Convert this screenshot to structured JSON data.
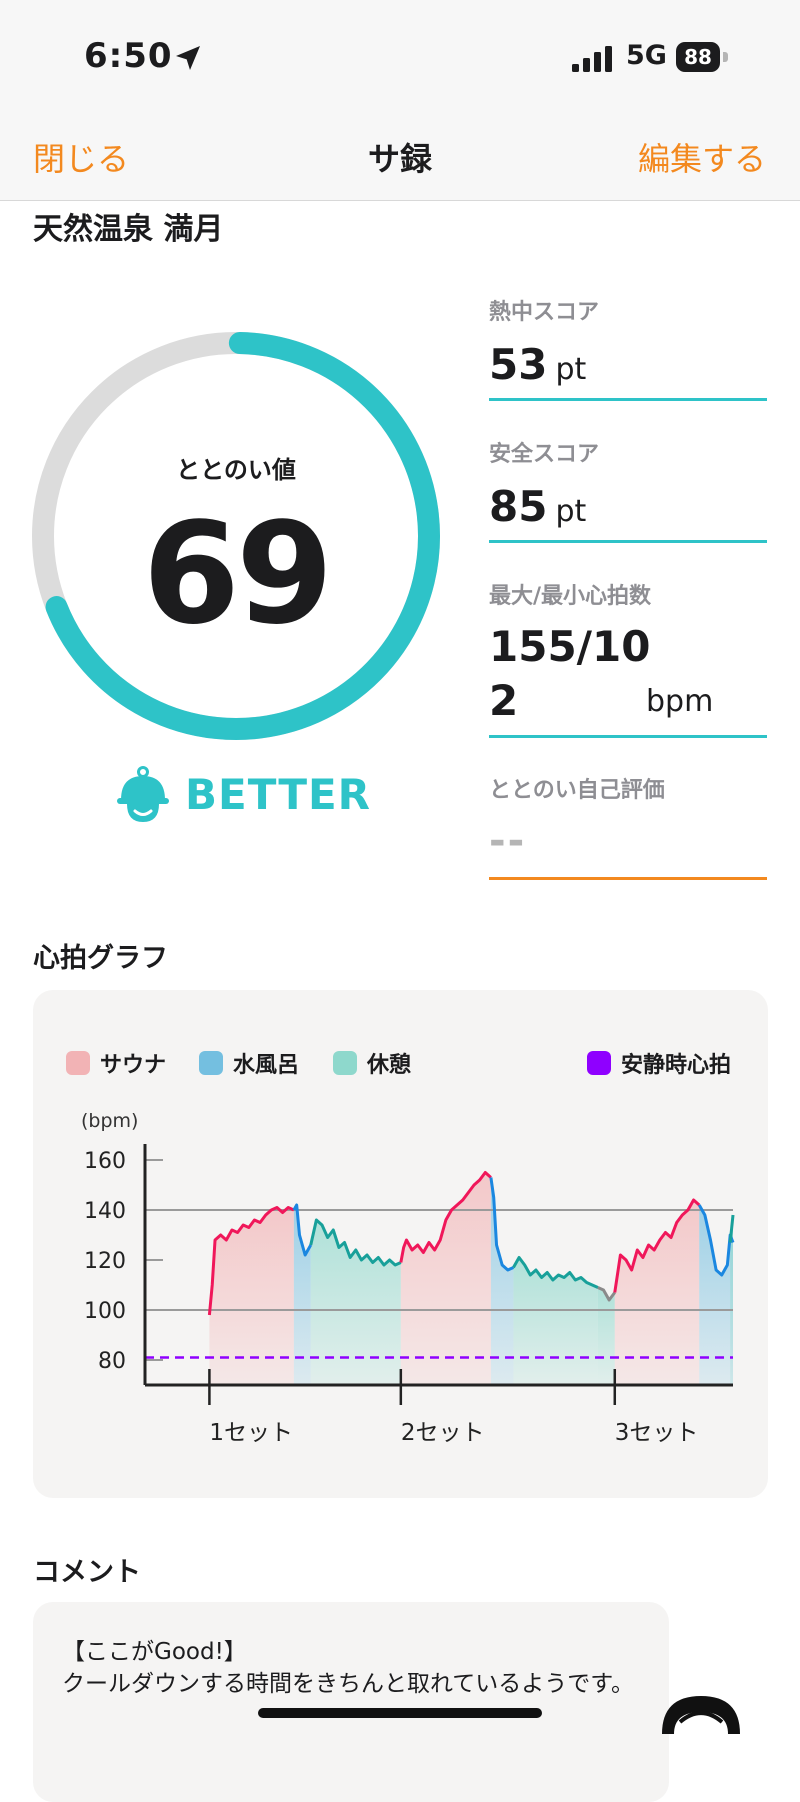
{
  "status": {
    "time": "6:50",
    "network": "5G",
    "battery": "88"
  },
  "nav": {
    "close": "閉じる",
    "title": "サ録",
    "edit": "編集する"
  },
  "place": "天然温泉 満月",
  "gauge": {
    "label": "ととのい値",
    "value": "69",
    "fraction": 0.69,
    "rating": "BETTER",
    "arc_color": "#2ec3c8",
    "track_color": "#dcdcdc"
  },
  "scores": {
    "heat": {
      "label": "熱中スコア",
      "value": "53",
      "unit": "pt"
    },
    "safety": {
      "label": "安全スコア",
      "value": "85",
      "unit": "pt"
    },
    "heart_rate": {
      "label": "最大/最小心拍数",
      "value": "155/102",
      "unit": "bpm"
    },
    "self_eval": {
      "label": "ととのい自己評価",
      "value": "--"
    }
  },
  "graph_section": {
    "title": "心拍グラフ"
  },
  "legend": [
    {
      "label": "サウナ",
      "color": "#f2b3b5"
    },
    {
      "label": "水風呂",
      "color": "#74bfe0"
    },
    {
      "label": "休憩",
      "color": "#8ed8cc"
    },
    {
      "label": "安静時心拍",
      "color": "#8f00ff"
    }
  ],
  "chart_data": {
    "type": "line",
    "ylabel": "(bpm)",
    "yticks": [
      160,
      140,
      120,
      100,
      80
    ],
    "ylim": [
      70,
      168
    ],
    "xlim": [
      0,
      100
    ],
    "set_labels": [
      {
        "label": "1セット",
        "x": 7
      },
      {
        "label": "2セット",
        "x": 41
      },
      {
        "label": "3セット",
        "x": 79
      }
    ],
    "resting_hr": 81,
    "reference_lines": [
      140,
      100
    ],
    "phases": [
      {
        "type": "サウナ",
        "x0": 7,
        "x1": 22
      },
      {
        "type": "水風呂",
        "x0": 22,
        "x1": 25
      },
      {
        "type": "休憩",
        "x0": 25,
        "x1": 41
      },
      {
        "type": "サウナ",
        "x0": 41,
        "x1": 57
      },
      {
        "type": "水風呂",
        "x0": 57,
        "x1": 61
      },
      {
        "type": "休憩",
        "x0": 61,
        "x1": 76
      },
      {
        "type": "サウナ",
        "x0": 79,
        "x1": 94
      },
      {
        "type": "水風呂",
        "x0": 94,
        "x1": 100
      }
    ],
    "series": [
      {
        "type": "サウナ",
        "color": "#f0175a",
        "points": [
          [
            7,
            98
          ],
          [
            7.5,
            110
          ],
          [
            8,
            128
          ],
          [
            9,
            130
          ],
          [
            10,
            128
          ],
          [
            11,
            132
          ],
          [
            12,
            131
          ],
          [
            13,
            134
          ],
          [
            14,
            133
          ],
          [
            15,
            136
          ],
          [
            16,
            135
          ],
          [
            17,
            138
          ],
          [
            18,
            140
          ],
          [
            19,
            141
          ],
          [
            20,
            139
          ],
          [
            21,
            141
          ],
          [
            22,
            140
          ]
        ]
      },
      {
        "type": "水風呂",
        "color": "#1b87e0",
        "points": [
          [
            22,
            140
          ],
          [
            22.5,
            142
          ],
          [
            23,
            130
          ],
          [
            24,
            122
          ],
          [
            25,
            126
          ]
        ]
      },
      {
        "type": "休憩",
        "color": "#18a09a",
        "points": [
          [
            25,
            126
          ],
          [
            26,
            136
          ],
          [
            27,
            134
          ],
          [
            28,
            129
          ],
          [
            29,
            132
          ],
          [
            30,
            125
          ],
          [
            31,
            127
          ],
          [
            32,
            121
          ],
          [
            33,
            124
          ],
          [
            34,
            120
          ],
          [
            35,
            122
          ],
          [
            36,
            119
          ],
          [
            37,
            121
          ],
          [
            38,
            118
          ],
          [
            39,
            120
          ],
          [
            40,
            118
          ],
          [
            41,
            119
          ]
        ]
      },
      {
        "type": "サウナ",
        "color": "#f0175a",
        "points": [
          [
            41,
            119
          ],
          [
            41.5,
            125
          ],
          [
            42,
            128
          ],
          [
            43,
            124
          ],
          [
            44,
            126
          ],
          [
            45,
            123
          ],
          [
            46,
            127
          ],
          [
            47,
            124
          ],
          [
            48,
            128
          ],
          [
            49,
            136
          ],
          [
            50,
            140
          ],
          [
            51,
            142
          ],
          [
            52,
            144
          ],
          [
            53,
            147
          ],
          [
            54,
            150
          ],
          [
            55,
            152
          ],
          [
            56,
            155
          ],
          [
            57,
            153
          ]
        ]
      },
      {
        "type": "水風呂",
        "color": "#1b87e0",
        "points": [
          [
            57,
            153
          ],
          [
            57.5,
            145
          ],
          [
            58,
            126
          ],
          [
            59,
            118
          ],
          [
            60,
            116
          ],
          [
            61,
            117
          ]
        ]
      },
      {
        "type": "休憩",
        "color": "#18a09a",
        "points": [
          [
            61,
            117
          ],
          [
            62,
            121
          ],
          [
            63,
            118
          ],
          [
            64,
            114
          ],
          [
            65,
            116
          ],
          [
            66,
            113
          ],
          [
            67,
            115
          ],
          [
            68,
            112
          ],
          [
            69,
            114
          ],
          [
            70,
            113
          ],
          [
            71,
            115
          ],
          [
            72,
            112
          ],
          [
            73,
            113
          ],
          [
            74,
            111
          ],
          [
            75,
            110
          ],
          [
            76,
            109
          ]
        ]
      },
      {
        "type": "休憩",
        "color": "#8a8a8a",
        "points": [
          [
            76,
            109
          ],
          [
            77,
            108
          ],
          [
            78,
            104
          ],
          [
            79,
            107
          ]
        ]
      },
      {
        "type": "サウナ",
        "color": "#f0175a",
        "points": [
          [
            79,
            107
          ],
          [
            80,
            122
          ],
          [
            81,
            120
          ],
          [
            82,
            116
          ],
          [
            83,
            124
          ],
          [
            84,
            121
          ],
          [
            85,
            126
          ],
          [
            86,
            124
          ],
          [
            87,
            128
          ],
          [
            88,
            131
          ],
          [
            89,
            129
          ],
          [
            90,
            135
          ],
          [
            91,
            138
          ],
          [
            92,
            140
          ],
          [
            93,
            144
          ],
          [
            94,
            142
          ]
        ]
      },
      {
        "type": "水風呂",
        "color": "#1b87e0",
        "points": [
          [
            94,
            142
          ],
          [
            95,
            138
          ],
          [
            96,
            128
          ],
          [
            97,
            116
          ],
          [
            98,
            114
          ],
          [
            99,
            118
          ],
          [
            99.5,
            130
          ],
          [
            100,
            127
          ]
        ]
      },
      {
        "type": "休憩",
        "color": "#18a09a",
        "points": [
          [
            99.5,
            127
          ],
          [
            100,
            138
          ]
        ]
      }
    ]
  },
  "comment_section": {
    "title": "コメント",
    "heading": "【ここがGood!】",
    "body": "クールダウンする時間をきちんと取れているようです。"
  }
}
